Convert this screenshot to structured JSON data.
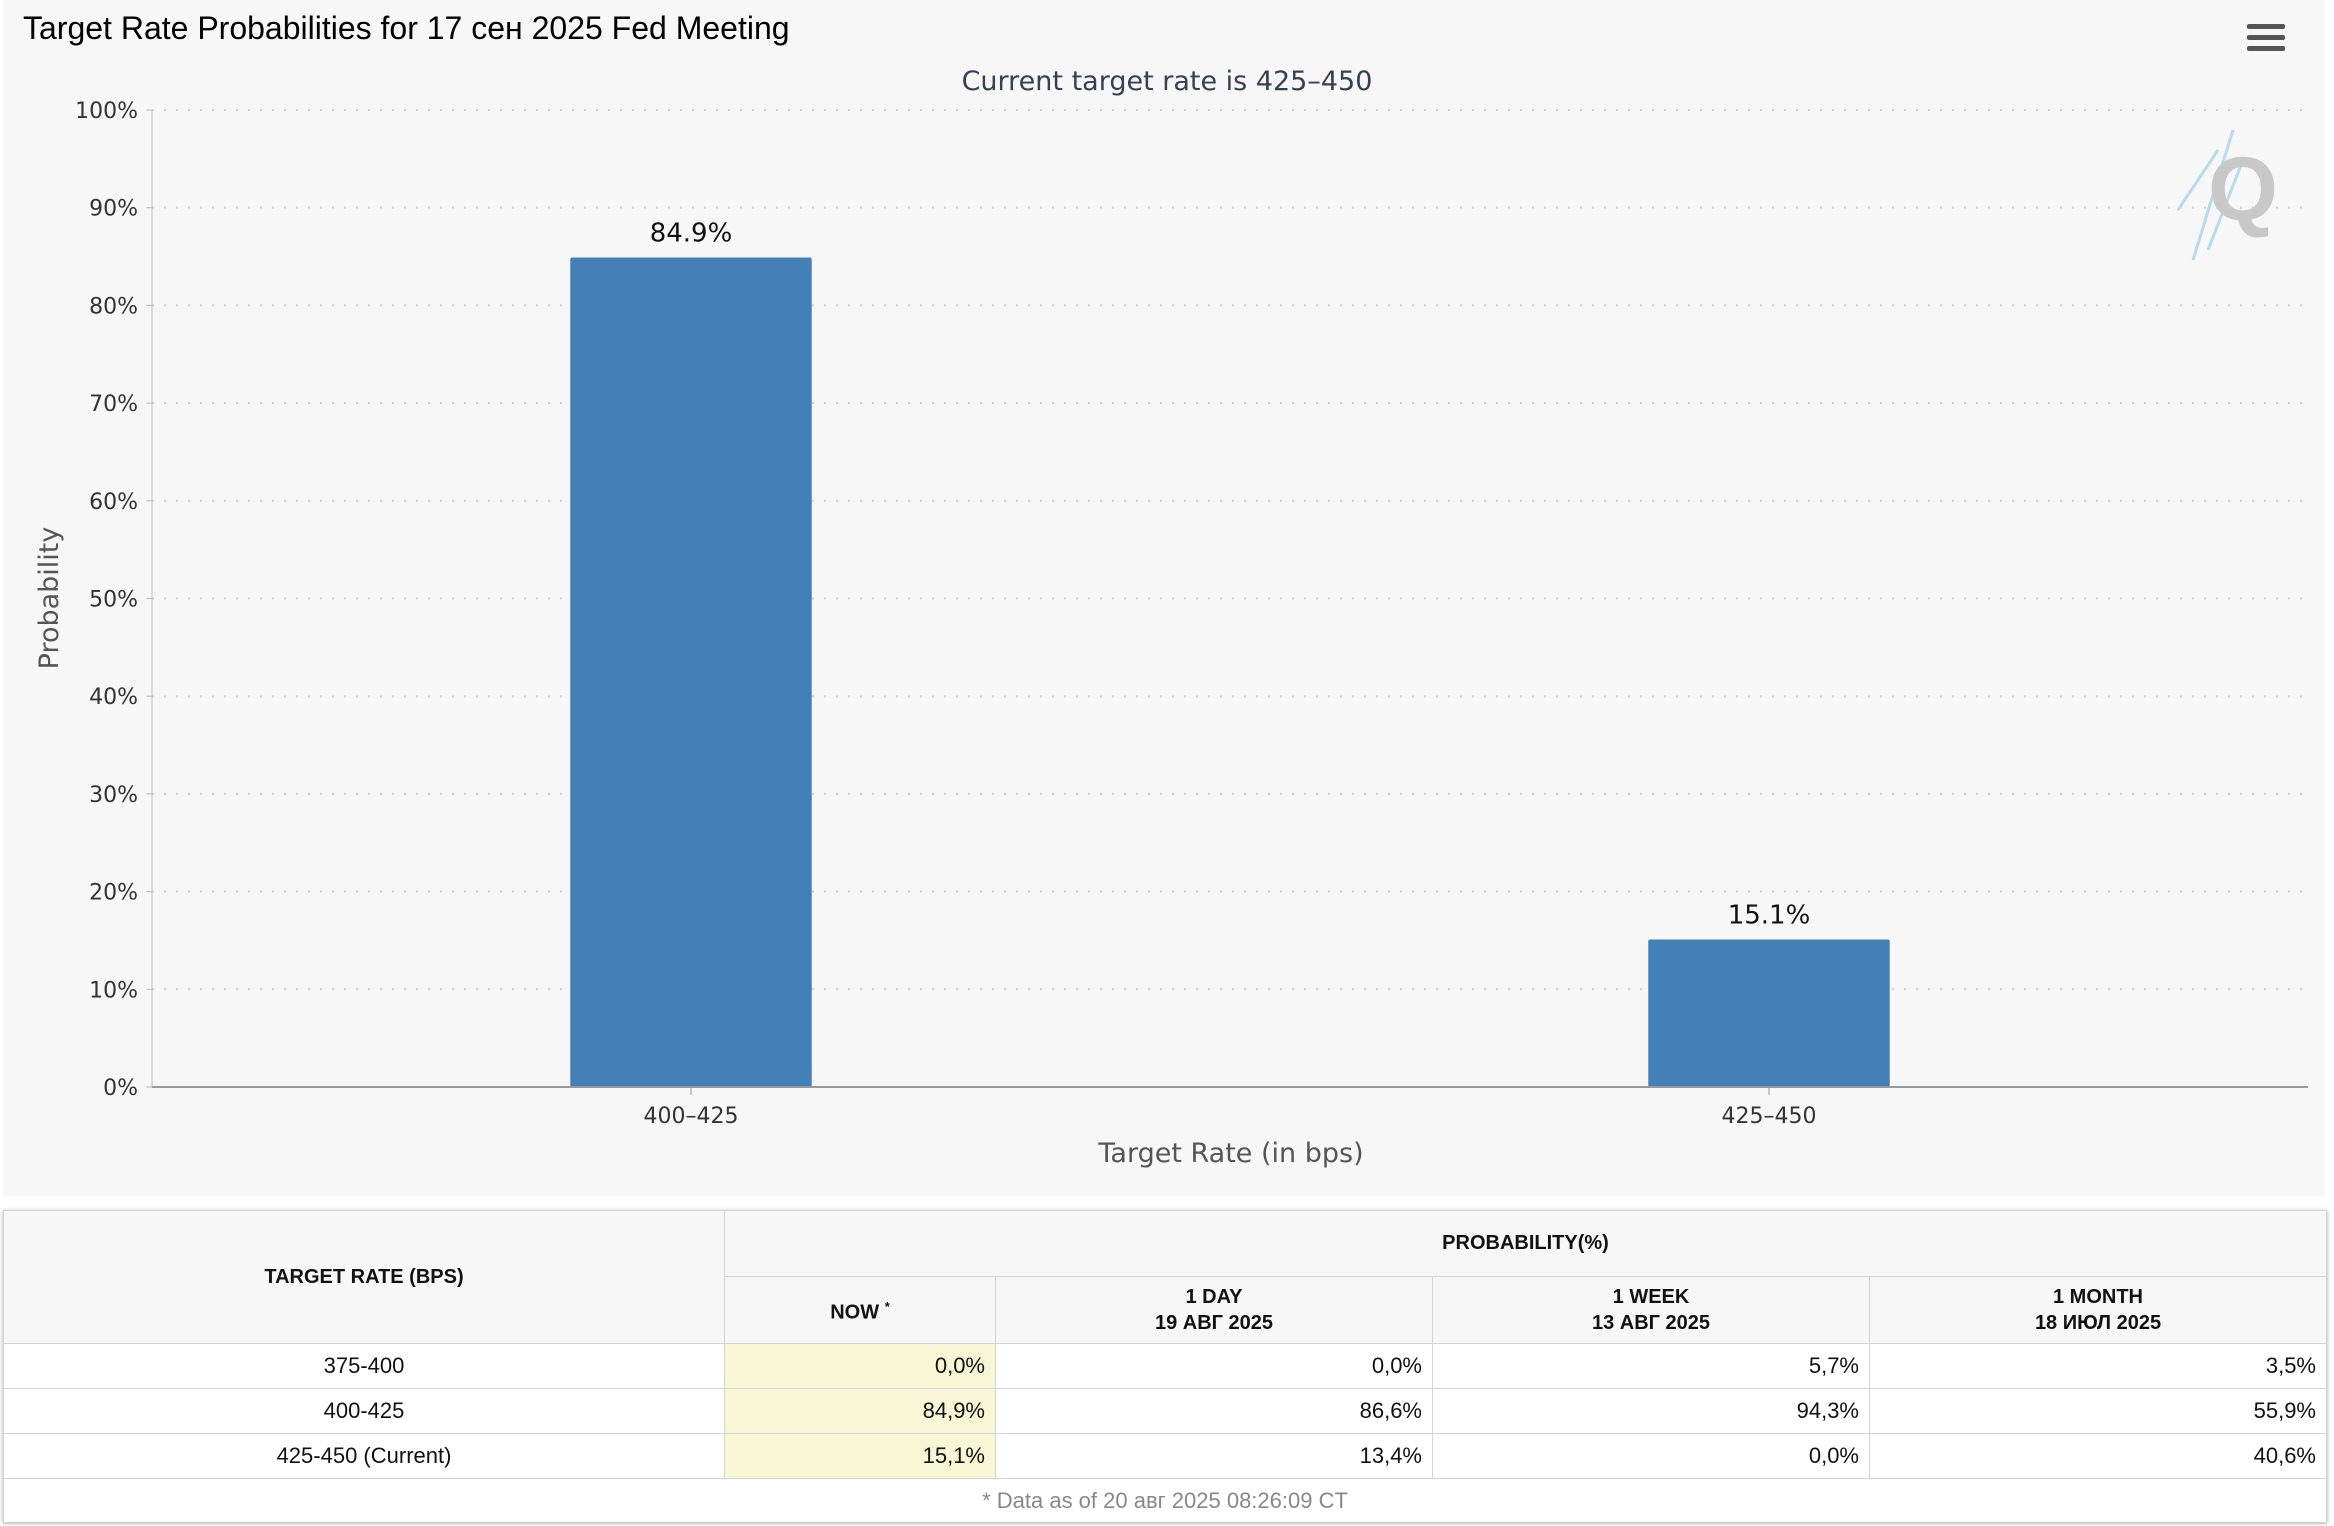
{
  "page_title": "Target Rate Probabilities for 17 сен 2025 Fed Meeting",
  "icons": {
    "menu": "menu-icon",
    "logo": "quikstrike-logo-icon"
  },
  "colors": {
    "bar": "#4380b7",
    "gridline": "#d0d0d0",
    "axis": "#999999"
  },
  "chart_data": {
    "type": "bar",
    "subtitle": "Current target rate is 425–450",
    "categories": [
      "400–425",
      "425–450"
    ],
    "values": [
      84.9,
      15.1
    ],
    "value_labels": [
      "84.9%",
      "15.1%"
    ],
    "xlabel": "Target Rate (in bps)",
    "ylabel": "Probability",
    "ylim": [
      0,
      100
    ],
    "yticks": [
      "0%",
      "10%",
      "20%",
      "30%",
      "40%",
      "50%",
      "60%",
      "70%",
      "80%",
      "90%",
      "100%"
    ],
    "grid": true,
    "legend": "none"
  },
  "table": {
    "col_target": "TARGET RATE (BPS)",
    "col_probability": "PROBABILITY(%)",
    "sub_now": "NOW",
    "sub_now_mark": "*",
    "sub_day": "1 DAY",
    "sub_day_date": "19 АВГ 2025",
    "sub_week": "1 WEEK",
    "sub_week_date": "13 АВГ 2025",
    "sub_month": "1 MONTH",
    "sub_month_date": "18 ИЮЛ 2025",
    "rows": [
      {
        "rate": "375-400",
        "now": "0,0%",
        "day": "0,0%",
        "week": "5,7%",
        "month": "3,5%"
      },
      {
        "rate": "400-425",
        "now": "84,9%",
        "day": "86,6%",
        "week": "94,3%",
        "month": "55,9%"
      },
      {
        "rate": "425-450 (Current)",
        "now": "15,1%",
        "day": "13,4%",
        "week": "0,0%",
        "month": "40,6%"
      }
    ],
    "footnote": "* Data as of 20 авг 2025 08:26:09 CT"
  }
}
